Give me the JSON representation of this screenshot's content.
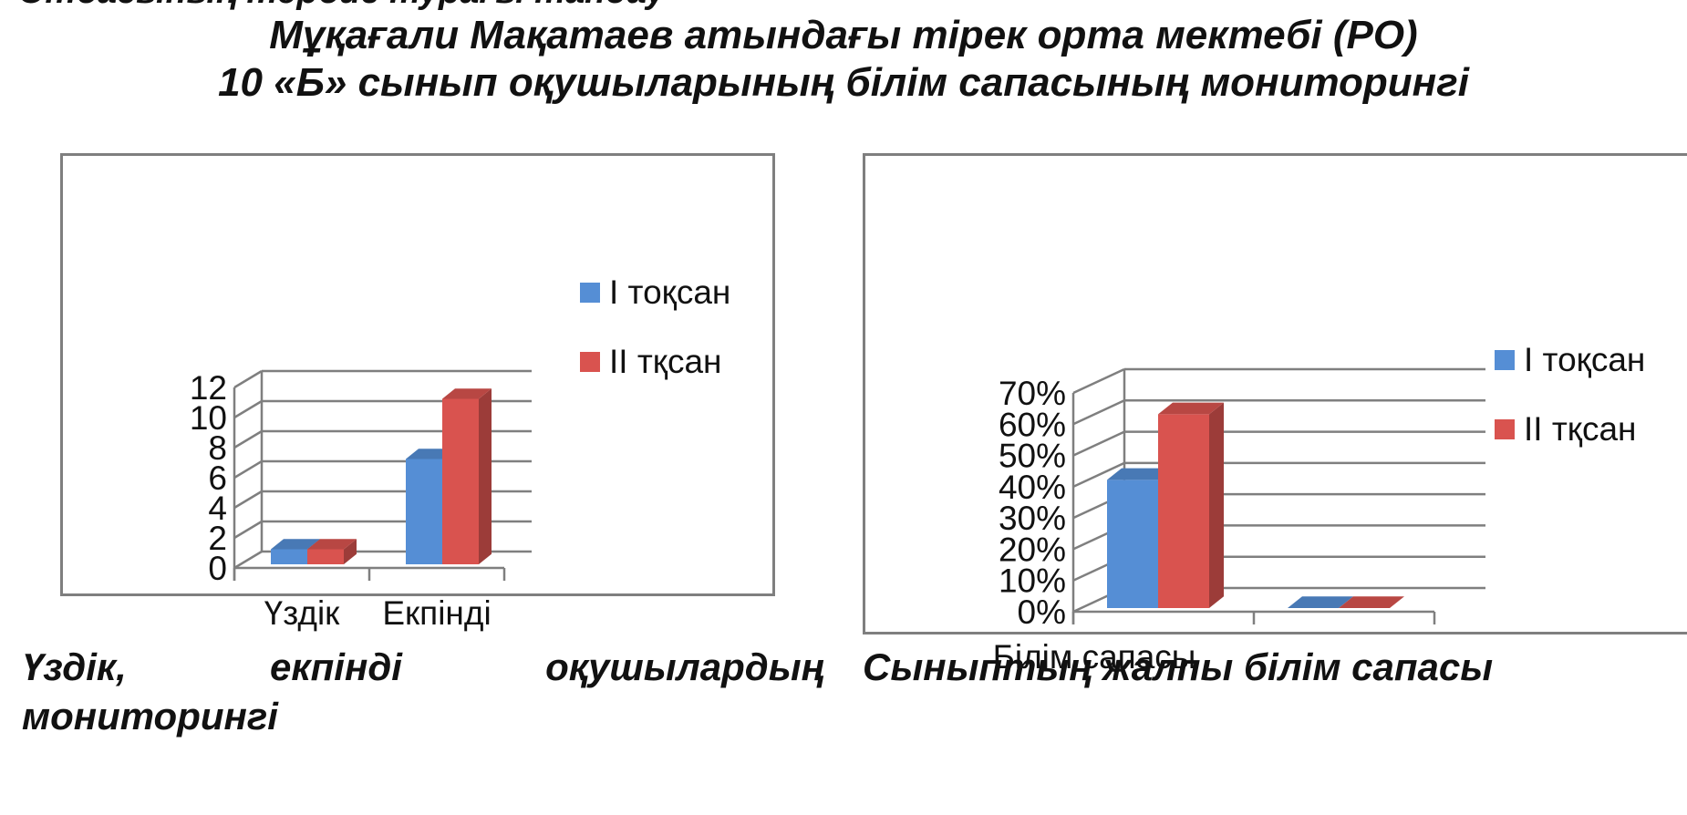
{
  "page": {
    "cut_line": "Отбасының тәрбие турағы тандау",
    "title_line1": "Мұқағали Мақатаев атындағы тірек орта мектебі (РО)",
    "title_line2": "10 «Б» сынып оқушыларының білім сапасының мониторингі",
    "caption_left_words": [
      "Үздік,",
      "екпінді",
      "оқушылардың"
    ],
    "caption_left_line2": "мониторингі",
    "caption_right": "Сыныптың жалпы білім сапасы"
  },
  "colors": {
    "series1": "#558ed5",
    "series2": "#d9534f",
    "grid": "#7f7f7f",
    "frame": "#7f7f7f"
  },
  "chart_data": [
    {
      "type": "bar",
      "title": "",
      "categories": [
        "Үздік",
        "Екпінді"
      ],
      "series": [
        {
          "name": "I тоқсан",
          "values": [
            1,
            7
          ]
        },
        {
          "name": "II тқсан",
          "values": [
            1,
            11
          ]
        }
      ],
      "yticks": [
        "0",
        "2",
        "4",
        "6",
        "8",
        "10",
        "12"
      ],
      "ylim": [
        0,
        12
      ],
      "grid": true,
      "legend": "right"
    },
    {
      "type": "bar",
      "title": "",
      "categories": [
        "Білім сапасы",
        ""
      ],
      "series": [
        {
          "name": "I тоқсан",
          "values": [
            41,
            0
          ]
        },
        {
          "name": "II тқсан",
          "values": [
            62,
            0
          ]
        }
      ],
      "yticks": [
        "0%",
        "10%",
        "20%",
        "30%",
        "40%",
        "50%",
        "60%",
        "70%"
      ],
      "ylim": [
        0,
        70
      ],
      "grid": true,
      "legend": "right"
    }
  ]
}
